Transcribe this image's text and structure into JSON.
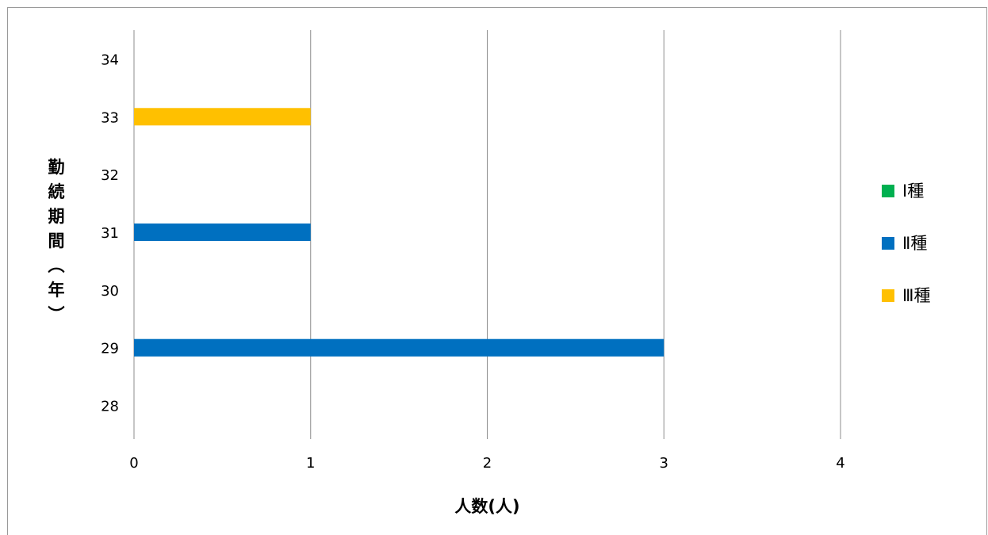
{
  "chart_data": {
    "type": "bar",
    "orientation": "horizontal",
    "categories": [
      "28",
      "29",
      "30",
      "31",
      "32",
      "33",
      "34"
    ],
    "series": [
      {
        "name": "Ⅰ種",
        "color": "#00b050",
        "values": [
          0,
          0,
          0,
          0,
          0,
          0,
          0
        ]
      },
      {
        "name": "Ⅱ種",
        "color": "#0070c0",
        "values": [
          0,
          3,
          0,
          1,
          0,
          0,
          0
        ]
      },
      {
        "name": "Ⅲ種",
        "color": "#ffc000",
        "values": [
          0,
          0,
          0,
          0,
          0,
          1,
          0
        ]
      }
    ],
    "xlabel": "人数(人)",
    "ylabel": [
      "勤",
      "続",
      "期",
      "間",
      "︵",
      "年",
      "︶"
    ],
    "xlim": [
      0,
      4
    ],
    "xticks": [
      "0",
      "1",
      "2",
      "3",
      "4"
    ],
    "grid": true,
    "legend_position": "right"
  }
}
